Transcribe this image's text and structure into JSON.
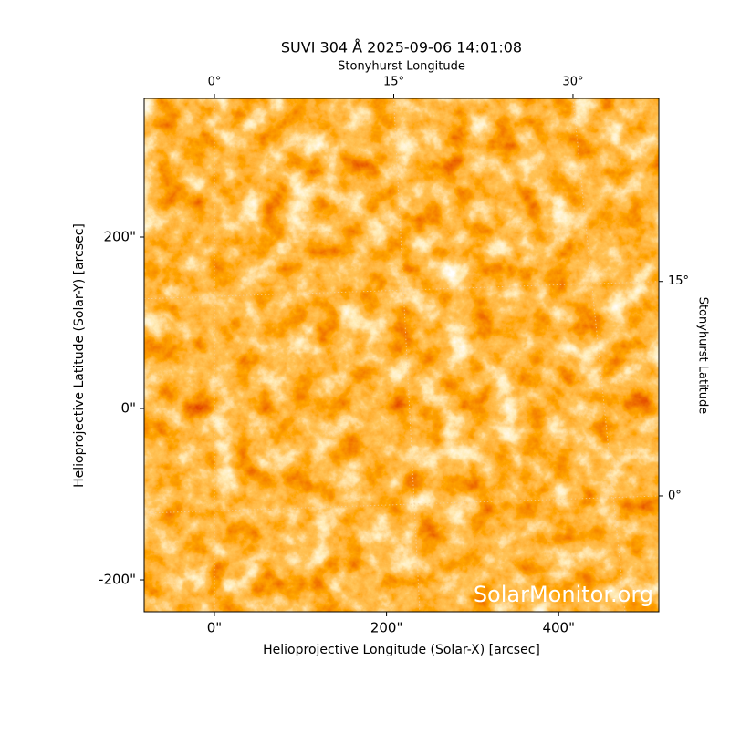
{
  "chart_data": {
    "type": "image",
    "title": "SUVI 304 Å 2025-09-06 14:01:08",
    "xlabel": "Helioprojective Longitude (Solar-X) [arcsec]",
    "ylabel": "Helioprojective Latitude (Solar-Y) [arcsec]",
    "x2label": "Stonyhurst Longitude",
    "y2label": "Stonyhurst Latitude",
    "watermark": "SolarMonitor.org",
    "xlim": [
      -81.6,
      516.4
    ],
    "ylim": [
      -237.2,
      361.7
    ],
    "xticks": [
      {
        "value": 0,
        "label": "0\""
      },
      {
        "value": 200,
        "label": "200\""
      },
      {
        "value": 400,
        "label": "400\""
      }
    ],
    "yticks": [
      {
        "value": -200,
        "label": "-200\""
      },
      {
        "value": 0,
        "label": "0\""
      },
      {
        "value": 200,
        "label": "200\""
      }
    ],
    "x2lim": [
      -5.88,
      37.18
    ],
    "x2ticks": [
      {
        "value": 0,
        "label": "0°"
      },
      {
        "value": 15,
        "label": "15°"
      },
      {
        "value": 30,
        "label": "30°"
      }
    ],
    "y2lim": [
      -8.1,
      27.8
    ],
    "y2ticks": [
      {
        "value": 0,
        "label": "0°"
      },
      {
        "value": 15,
        "label": "15°"
      }
    ],
    "grid": true
  }
}
